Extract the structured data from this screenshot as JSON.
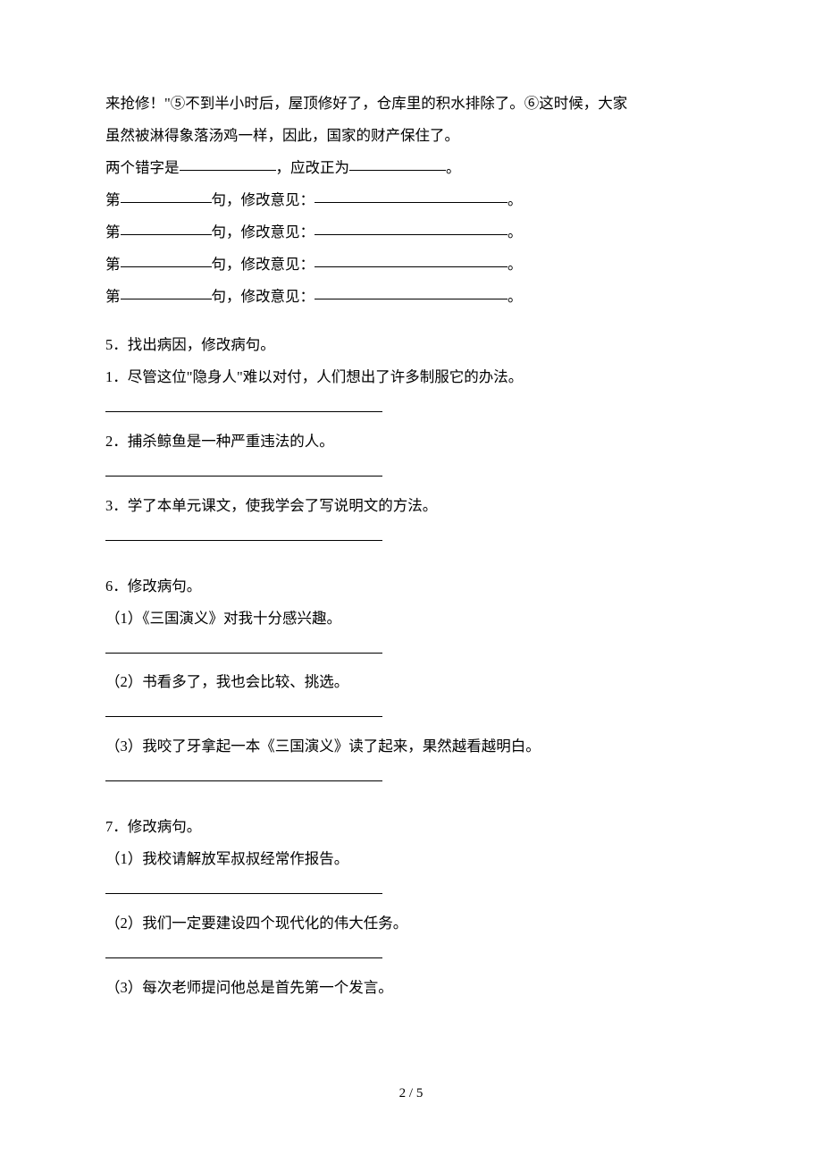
{
  "intro": {
    "line1": "来抢修！\"⑤不到半小时后，屋顶修好了，仓库里的积水排除了。⑥这时候，大家",
    "line2": "虽然被淋得象落汤鸡一样，因此，国家的财产保住了。",
    "err_prefix": "两个错字是",
    "err_mid": "，应改正为",
    "period": "。",
    "row_prefix": "第",
    "row_mid": "句，修改意见：",
    "row_suffix": "。"
  },
  "q5": {
    "title": "5．找出病因，修改病句。",
    "s1": "1．尽管这位\"隐身人\"难以对付，人们想出了许多制服它的办法。",
    "s2": "2．捕杀鲸鱼是一种严重违法的人。",
    "s3": "3．学了本单元课文，使我学会了写说明文的方法。"
  },
  "q6": {
    "title": "6．修改病句。",
    "s1": "（1）《三国演义》对我十分感兴趣。",
    "s2": "（2）书看多了，我也会比较、挑选。",
    "s3": "（3）我咬了牙拿起一本《三国演义》读了起来，果然越看越明白。"
  },
  "q7": {
    "title": "7．修改病句。",
    "s1": "（1）我校请解放军叔叔经常作报告。",
    "s2": "（2）我们一定要建设四个现代化的伟大任务。",
    "s3": "（3）每次老师提问他总是首先第一个发言。"
  },
  "footer": "2 / 5"
}
